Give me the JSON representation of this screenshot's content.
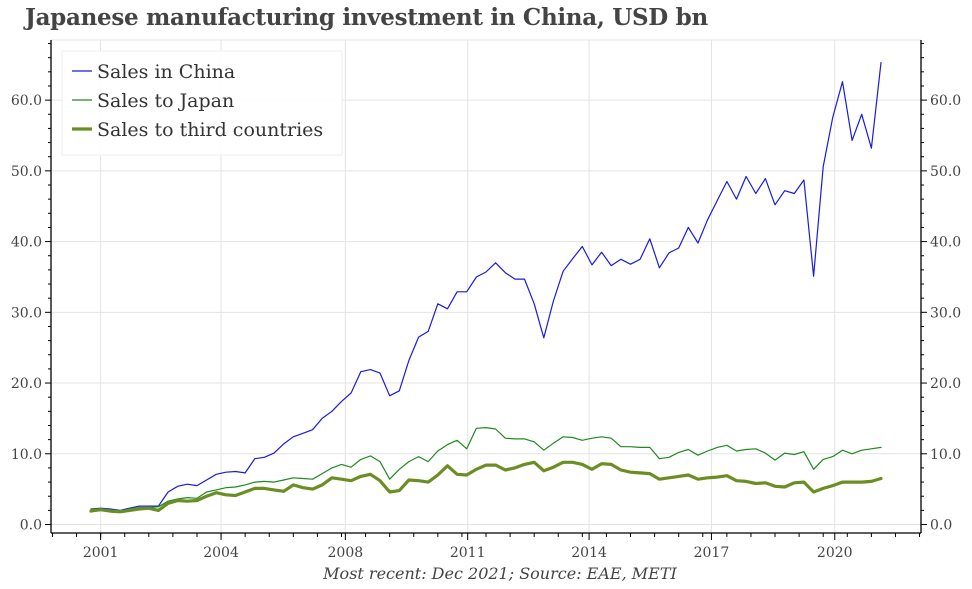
{
  "chart_data": {
    "type": "line",
    "title": "Japanese manufacturing investment in China, USD bn",
    "footnote": "Most recent: Dec 2021; Source: EAE, METI",
    "xlabel": "",
    "ylabel": "",
    "ylim": [
      -1.2,
      68.5
    ],
    "yticks": [
      0,
      10,
      20,
      30,
      40,
      50,
      60
    ],
    "ytick_labels": [
      "0.0",
      "10.0",
      "20.0",
      "30.0",
      "40.0",
      "50.0",
      "60.0"
    ],
    "y_minor_step": 2,
    "xtick_labels": [
      "2001",
      "2004",
      "2008",
      "2011",
      "2014",
      "2017",
      "2020"
    ],
    "xtick_point_index": [
      1,
      13.5,
      26.4,
      39.1,
      51.7,
      64.4,
      77.2
    ],
    "x_frequency": "quarterly",
    "grid": true,
    "legend_position": "top-left",
    "axes_both_sides": true,
    "series": [
      {
        "name": "Sales in China",
        "color": "#1a1ae0",
        "width": "thin",
        "values": [
          2.2,
          2.3,
          2.2,
          2.0,
          2.3,
          2.6,
          2.6,
          2.6,
          4.6,
          5.4,
          5.7,
          5.5,
          6.3,
          7.1,
          7.4,
          7.5,
          7.3,
          9.3,
          9.5,
          10.1,
          11.4,
          12.4,
          12.9,
          13.4,
          15.0,
          16.0,
          17.4,
          18.6,
          21.6,
          21.9,
          21.4,
          18.2,
          18.9,
          23.2,
          26.5,
          27.3,
          31.2,
          30.5,
          32.9,
          32.9,
          35.0,
          35.7,
          37.0,
          35.6,
          34.7,
          34.7,
          31.2,
          26.4,
          31.6,
          35.8,
          37.6,
          39.3,
          36.7,
          38.5,
          36.6,
          37.5,
          36.8,
          37.5,
          40.4,
          36.3,
          38.4,
          39.1,
          42.0,
          39.8,
          43.1,
          45.8,
          48.5,
          46.0,
          49.2,
          46.8,
          48.9,
          45.2,
          47.2,
          46.8,
          48.7,
          35.1,
          50.6,
          57.6,
          62.6,
          54.3,
          58.0,
          53.2,
          65.3
        ]
      },
      {
        "name": "Sales to Japan",
        "color": "#1f8a1f",
        "width": "thin",
        "values": [
          2.2,
          2.2,
          2.1,
          1.9,
          2.2,
          2.4,
          2.4,
          2.5,
          3.3,
          3.6,
          3.8,
          3.7,
          4.6,
          4.9,
          5.2,
          5.3,
          5.6,
          6.0,
          6.1,
          6.0,
          6.3,
          6.6,
          6.5,
          6.4,
          7.2,
          8.0,
          8.5,
          8.1,
          9.2,
          9.7,
          8.9,
          6.4,
          7.8,
          8.9,
          9.6,
          8.9,
          10.4,
          11.3,
          11.9,
          10.7,
          13.6,
          13.7,
          13.5,
          12.2,
          12.1,
          12.1,
          11.7,
          10.5,
          11.5,
          12.4,
          12.3,
          11.9,
          12.2,
          12.4,
          12.2,
          11.0,
          11.0,
          10.9,
          10.9,
          9.3,
          9.5,
          10.2,
          10.6,
          9.8,
          10.4,
          10.9,
          11.2,
          10.4,
          10.6,
          10.7,
          10.1,
          9.1,
          10.1,
          9.9,
          10.3,
          7.8,
          9.2,
          9.6,
          10.5,
          10.0,
          10.5,
          10.7,
          10.9
        ]
      },
      {
        "name": "Sales to third countries",
        "color": "#6b8e23",
        "width": "thick",
        "values": [
          1.9,
          2.1,
          1.9,
          1.8,
          2.0,
          2.2,
          2.3,
          2.0,
          3.0,
          3.4,
          3.3,
          3.4,
          4.0,
          4.5,
          4.2,
          4.1,
          4.6,
          5.1,
          5.1,
          4.9,
          4.7,
          5.6,
          5.2,
          5.0,
          5.6,
          6.6,
          6.4,
          6.2,
          6.8,
          7.1,
          6.2,
          4.6,
          4.8,
          6.3,
          6.2,
          6.0,
          7.0,
          8.3,
          7.1,
          7.0,
          7.8,
          8.4,
          8.4,
          7.7,
          8.0,
          8.5,
          8.8,
          7.6,
          8.1,
          8.8,
          8.8,
          8.5,
          7.8,
          8.6,
          8.5,
          7.7,
          7.4,
          7.3,
          7.2,
          6.4,
          6.6,
          6.8,
          7.0,
          6.4,
          6.6,
          6.7,
          6.9,
          6.2,
          6.1,
          5.8,
          5.9,
          5.4,
          5.3,
          5.9,
          6.0,
          4.6,
          5.1,
          5.5,
          6.0,
          6.0,
          6.0,
          6.1,
          6.5
        ]
      }
    ]
  }
}
